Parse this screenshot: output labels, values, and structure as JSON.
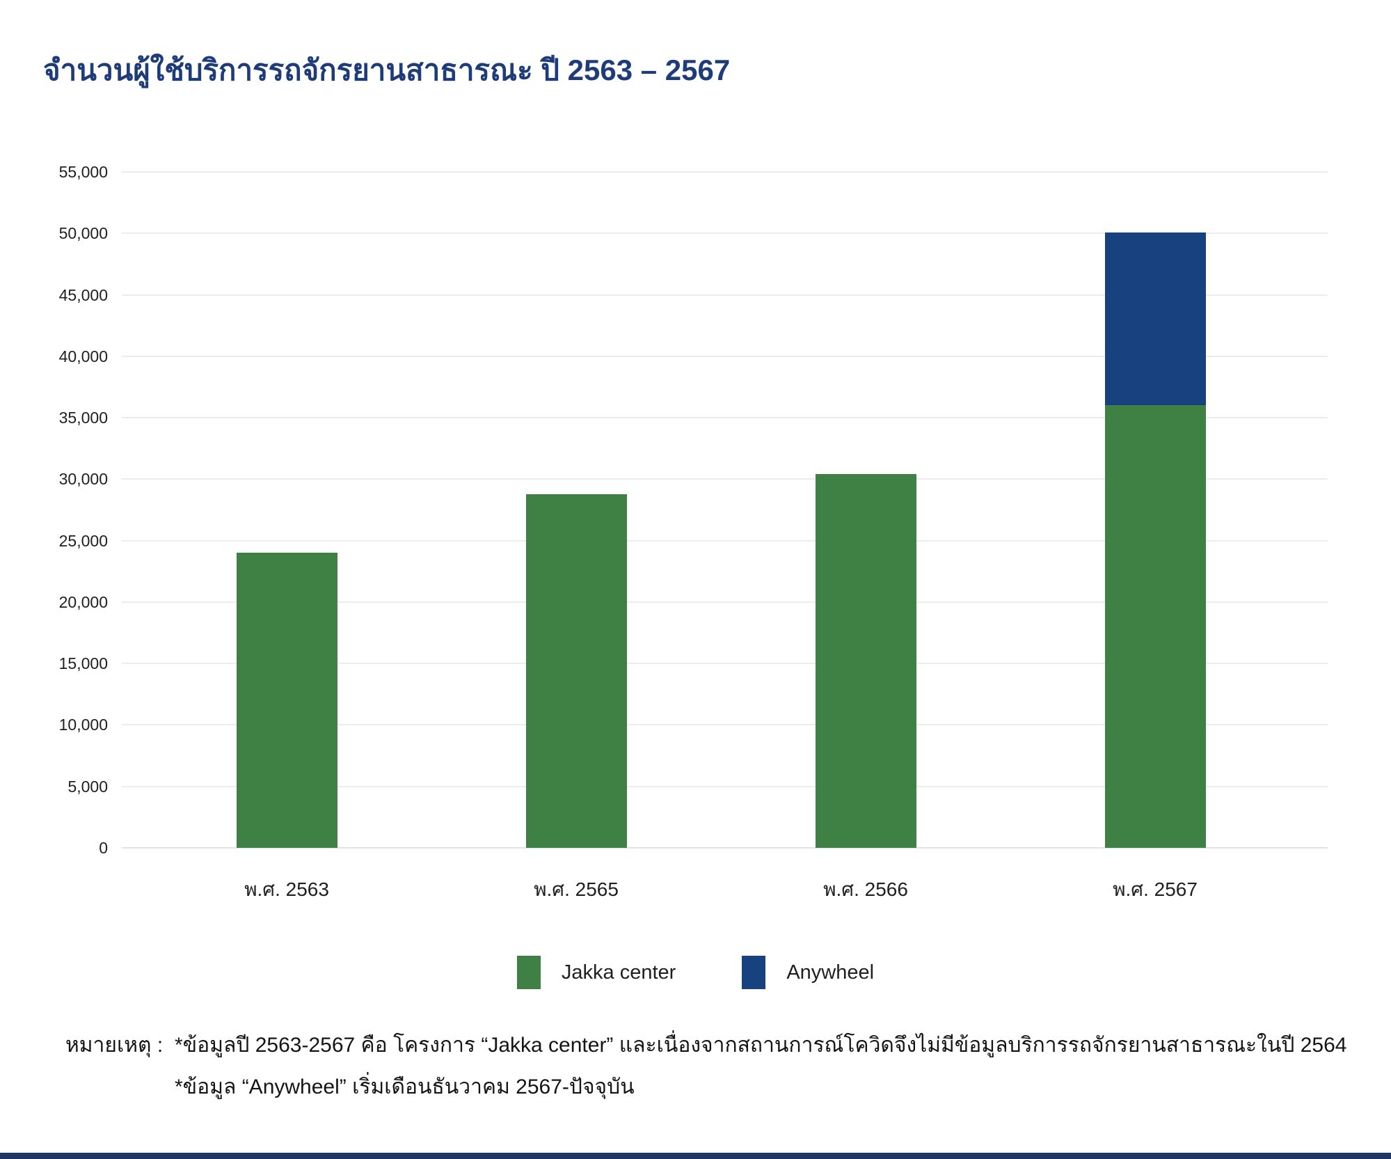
{
  "title": "จำนวนผู้ใช้บริการรถจักรยานสาธารณะ ปี 2563 – 2567",
  "colors": {
    "title": "#1E3B7A",
    "jakka_green": "#3F8145",
    "anywheel_blue": "#18427F",
    "axis_text": "#1f1f1f",
    "gridline": "#ececec",
    "bottom_strip": "#1D3864"
  },
  "chart_data": {
    "type": "bar",
    "stacked": true,
    "title": "จำนวนผู้ใช้บริการรถจักรยานสาธารณะ ปี 2563 – 2567",
    "categories": [
      "พ.ศ. 2563",
      "พ.ศ. 2565",
      "พ.ศ. 2566",
      "พ.ศ. 2567"
    ],
    "series": [
      {
        "name": "Jakka center",
        "color": "#3F8145",
        "values": [
          24000,
          28800,
          30400,
          36000
        ]
      },
      {
        "name": "Anywheel",
        "color": "#18427F",
        "values": [
          0,
          0,
          0,
          14100
        ]
      }
    ],
    "xlabel": "",
    "ylabel": "",
    "ylim": [
      0,
      55000
    ],
    "ytick_step": 5000,
    "ytick_labels": [
      "0",
      "5,000",
      "10,000",
      "15,000",
      "20,000",
      "25,000",
      "30,000",
      "35,000",
      "40,000",
      "45,000",
      "50,000",
      "55,000"
    ],
    "grid": true,
    "legend_position": "bottom"
  },
  "footnote": {
    "label": "หมายเหตุ :",
    "lines": [
      "*ข้อมูลปี 2563-2567 คือ โครงการ “Jakka center” และเนื่องจากสถานการณ์โควิดจึงไม่มีข้อมูลบริการรถจักรยานสาธารณะในปี 2564",
      "*ข้อมูล “Anywheel” เริ่มเดือนธันวาคม 2567-ปัจจุบัน"
    ]
  }
}
